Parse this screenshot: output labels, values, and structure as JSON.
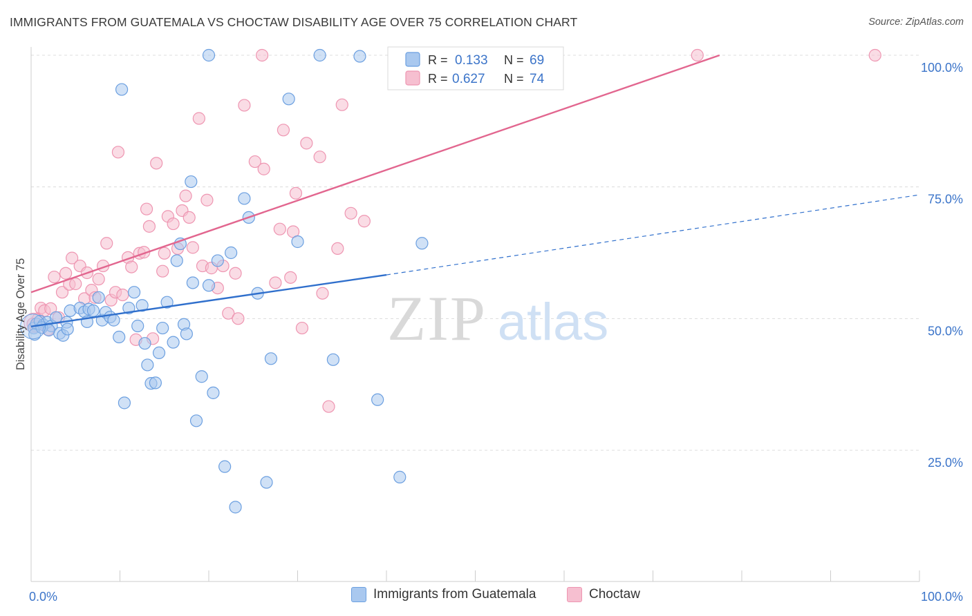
{
  "header": {
    "title": "IMMIGRANTS FROM GUATEMALA VS CHOCTAW DISABILITY AGE OVER 75 CORRELATION CHART",
    "source": "Source: ZipAtlas.com"
  },
  "watermark": {
    "zip": "ZIP",
    "atlas": "atlas"
  },
  "colors": {
    "blue_fill": "#a9c8ef",
    "blue_stroke": "#6b9fe0",
    "blue_line": "#2f6fcc",
    "pink_fill": "#f6bfd0",
    "pink_stroke": "#ee95b1",
    "pink_line": "#e2668f",
    "axis_label": "#3b74c9",
    "grid": "#dcdcdc"
  },
  "stats_legend": [
    {
      "r_label": "R =",
      "r_value": "0.133",
      "n_label": "N =",
      "n_value": "69",
      "series": "blue"
    },
    {
      "r_label": "R =",
      "r_value": "0.627",
      "n_label": "N =",
      "n_value": "74",
      "series": "pink"
    }
  ],
  "chart_data": {
    "type": "scatter",
    "title": "IMMIGRANTS FROM GUATEMALA VS CHOCTAW DISABILITY AGE OVER 75 CORRELATION CHART",
    "xlabel": "",
    "ylabel": "Disability Age Over 75",
    "xlim": [
      0,
      100
    ],
    "ylim": [
      5,
      102
    ],
    "x_tick_labels": [
      "0.0%",
      "100.0%"
    ],
    "y_tick_labels": [
      "25.0%",
      "50.0%",
      "75.0%",
      "100.0%"
    ],
    "y_ticks": [
      25,
      50,
      75,
      100
    ],
    "grid": true,
    "legend_position": "bottom",
    "series": [
      {
        "name": "Immigrants from Guatemala",
        "color": "#a9c8ef",
        "r": 0.133,
        "n": 69,
        "trend": {
          "x0": 0,
          "y0": 48.5,
          "x1": 40,
          "y1": 58.3,
          "dashed_to_x": 100,
          "dashed_to_y": 73.5
        },
        "points": [
          [
            0.3,
            48.2
          ],
          [
            0.6,
            49.0
          ],
          [
            1.0,
            49.5
          ],
          [
            1.4,
            48.8
          ],
          [
            1.8,
            49.3
          ],
          [
            2.3,
            48.6
          ],
          [
            2.8,
            50.2
          ],
          [
            3.2,
            47.2
          ],
          [
            3.6,
            46.8
          ],
          [
            4.0,
            49.3
          ],
          [
            4.1,
            48.0
          ],
          [
            4.4,
            51.5
          ],
          [
            5.5,
            52.0
          ],
          [
            6.0,
            51.3
          ],
          [
            6.3,
            49.4
          ],
          [
            6.5,
            51.8
          ],
          [
            7.0,
            51.5
          ],
          [
            7.6,
            54.0
          ],
          [
            8.0,
            49.7
          ],
          [
            8.4,
            51.2
          ],
          [
            8.9,
            50.3
          ],
          [
            9.3,
            49.7
          ],
          [
            9.9,
            46.5
          ],
          [
            10.2,
            93.5
          ],
          [
            10.5,
            34.0
          ],
          [
            11.0,
            52.0
          ],
          [
            11.6,
            55.0
          ],
          [
            12.0,
            48.6
          ],
          [
            12.5,
            52.5
          ],
          [
            12.8,
            45.3
          ],
          [
            13.1,
            41.2
          ],
          [
            13.5,
            37.7
          ],
          [
            14.0,
            37.8
          ],
          [
            14.4,
            43.5
          ],
          [
            14.8,
            48.2
          ],
          [
            15.3,
            53.1
          ],
          [
            16.0,
            45.5
          ],
          [
            16.4,
            61.0
          ],
          [
            16.8,
            64.2
          ],
          [
            17.2,
            48.9
          ],
          [
            17.5,
            47.1
          ],
          [
            18.2,
            56.8
          ],
          [
            18.6,
            30.6
          ],
          [
            18.0,
            76.0
          ],
          [
            19.2,
            39.0
          ],
          [
            20.0,
            56.3
          ],
          [
            20.5,
            35.9
          ],
          [
            21.0,
            61.0
          ],
          [
            21.8,
            21.9
          ],
          [
            22.5,
            62.5
          ],
          [
            23.0,
            14.2
          ],
          [
            24.0,
            72.8
          ],
          [
            24.5,
            69.2
          ],
          [
            25.5,
            54.8
          ],
          [
            26.5,
            18.9
          ],
          [
            27.0,
            42.4
          ],
          [
            29.0,
            91.7
          ],
          [
            30.0,
            64.6
          ],
          [
            34.0,
            42.2
          ],
          [
            37.0,
            99.8
          ],
          [
            39.0,
            34.6
          ],
          [
            41.5,
            19.9
          ],
          [
            42.0,
            99.8
          ],
          [
            44.0,
            64.3
          ],
          [
            20.0,
            100.0
          ],
          [
            32.5,
            100.0
          ],
          [
            0.4,
            47.0
          ],
          [
            1.2,
            48.3
          ],
          [
            2.0,
            47.8
          ]
        ]
      },
      {
        "name": "Choctaw",
        "color": "#f6bfd0",
        "r": 0.627,
        "n": 74,
        "trend": {
          "x0": 0,
          "y0": 55.0,
          "x1": 77.5,
          "y1": 100.0
        },
        "points": [
          [
            0.2,
            49.0
          ],
          [
            0.5,
            48.6
          ],
          [
            0.8,
            50.0
          ],
          [
            1.1,
            52.0
          ],
          [
            1.5,
            51.5
          ],
          [
            1.9,
            47.9
          ],
          [
            2.2,
            51.9
          ],
          [
            2.6,
            57.9
          ],
          [
            3.1,
            50.2
          ],
          [
            3.5,
            55.0
          ],
          [
            3.9,
            58.6
          ],
          [
            4.3,
            56.5
          ],
          [
            4.6,
            61.5
          ],
          [
            5.0,
            56.6
          ],
          [
            5.5,
            60.0
          ],
          [
            6.0,
            53.8
          ],
          [
            6.3,
            58.7
          ],
          [
            6.8,
            55.4
          ],
          [
            7.2,
            54.0
          ],
          [
            7.6,
            57.5
          ],
          [
            8.1,
            60.0
          ],
          [
            8.5,
            64.3
          ],
          [
            9.0,
            53.5
          ],
          [
            9.5,
            55.0
          ],
          [
            9.8,
            81.6
          ],
          [
            10.3,
            54.5
          ],
          [
            10.9,
            61.6
          ],
          [
            11.3,
            59.8
          ],
          [
            11.8,
            46.0
          ],
          [
            12.2,
            62.4
          ],
          [
            12.7,
            62.6
          ],
          [
            13.0,
            70.8
          ],
          [
            13.3,
            67.5
          ],
          [
            13.7,
            46.2
          ],
          [
            14.1,
            79.5
          ],
          [
            14.8,
            59.0
          ],
          [
            15.0,
            62.4
          ],
          [
            15.4,
            69.4
          ],
          [
            16.0,
            68.0
          ],
          [
            16.5,
            63.3
          ],
          [
            17.0,
            70.5
          ],
          [
            17.4,
            73.3
          ],
          [
            17.8,
            69.2
          ],
          [
            18.2,
            63.5
          ],
          [
            18.9,
            88.0
          ],
          [
            19.3,
            60.0
          ],
          [
            19.8,
            72.5
          ],
          [
            20.3,
            59.6
          ],
          [
            21.0,
            55.8
          ],
          [
            21.6,
            60.0
          ],
          [
            22.2,
            51.0
          ],
          [
            23.0,
            58.6
          ],
          [
            23.3,
            50.0
          ],
          [
            24.0,
            90.5
          ],
          [
            25.2,
            79.8
          ],
          [
            26.2,
            78.4
          ],
          [
            27.5,
            56.8
          ],
          [
            28.0,
            67.0
          ],
          [
            28.4,
            85.8
          ],
          [
            29.2,
            57.8
          ],
          [
            29.5,
            66.5
          ],
          [
            29.8,
            73.8
          ],
          [
            30.5,
            48.2
          ],
          [
            31.0,
            83.3
          ],
          [
            32.5,
            80.7
          ],
          [
            32.8,
            54.8
          ],
          [
            33.5,
            33.3
          ],
          [
            34.5,
            63.3
          ],
          [
            35.0,
            90.6
          ],
          [
            36.0,
            70.0
          ],
          [
            37.5,
            68.5
          ],
          [
            26.0,
            100.0
          ],
          [
            75.0,
            100.0
          ],
          [
            95.0,
            100.0
          ]
        ]
      }
    ]
  },
  "bottom_legend": [
    {
      "label": "Immigrants from Guatemala",
      "series": "blue"
    },
    {
      "label": "Choctaw",
      "series": "pink"
    }
  ]
}
